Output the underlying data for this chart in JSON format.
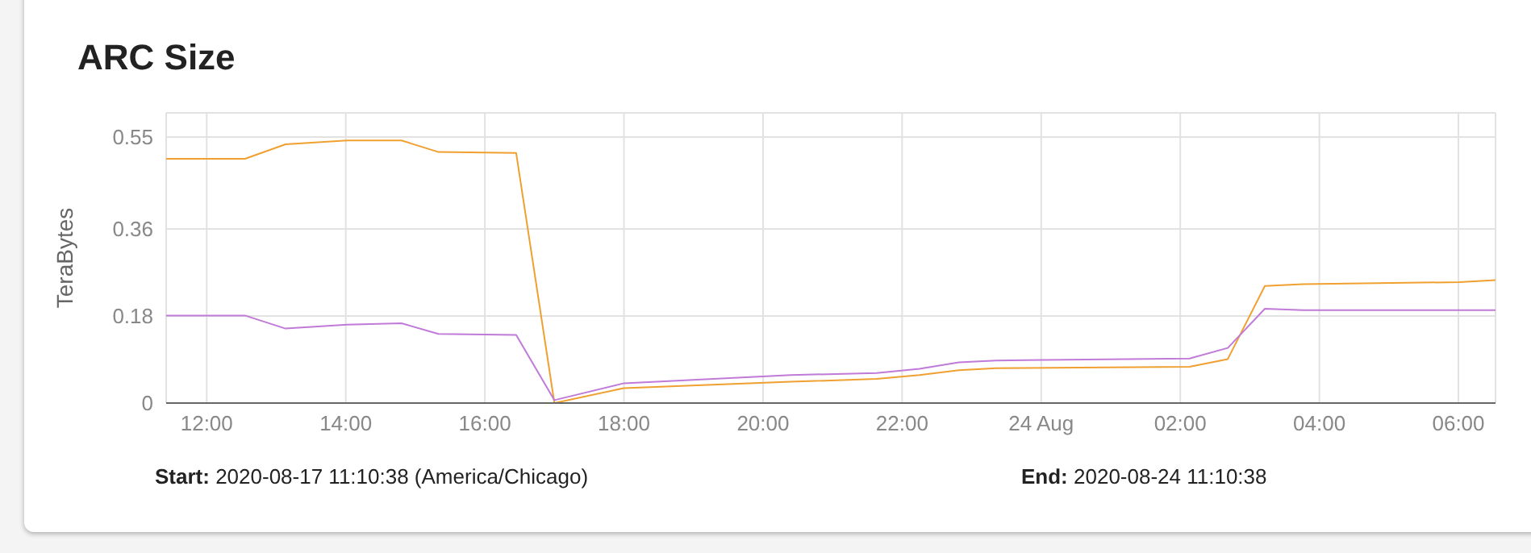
{
  "chart_data": {
    "type": "line",
    "title": "ARC Size",
    "ylabel": "TeraBytes",
    "x": [
      "2020-08-23T11:25",
      "2020-08-23T12:33",
      "2020-08-23T13:08",
      "2020-08-23T14:01",
      "2020-08-23T14:48",
      "2020-08-23T15:20",
      "2020-08-23T16:27",
      "2020-08-23T17:00",
      "2020-08-23T18:00",
      "2020-08-23T20:24",
      "2020-08-23T21:38",
      "2020-08-23T22:15",
      "2020-08-23T22:49",
      "2020-08-23T23:21",
      "2020-08-24T02:08",
      "2020-08-24T02:41",
      "2020-08-24T03:13",
      "2020-08-24T03:46",
      "2020-08-24T06:01",
      "2020-08-24T06:32"
    ],
    "series": [
      {
        "color": "#f0a030",
        "values": [
          0.505,
          0.505,
          0.535,
          0.543,
          0.543,
          0.519,
          0.517,
          0.0,
          0.031,
          0.044,
          0.05,
          0.058,
          0.068,
          0.072,
          0.075,
          0.091,
          0.242,
          0.246,
          0.25,
          0.254
        ]
      },
      {
        "color": "#c07ad8",
        "values": [
          0.181,
          0.181,
          0.154,
          0.162,
          0.165,
          0.143,
          0.141,
          0.006,
          0.041,
          0.058,
          0.062,
          0.071,
          0.084,
          0.088,
          0.092,
          0.114,
          0.195,
          0.192,
          0.192,
          0.192
        ]
      }
    ],
    "xlim": [
      "2020-08-23T11:25",
      "2020-08-24T06:32"
    ],
    "xticks": [
      {
        "value": "2020-08-23T12:00",
        "label": "12:00"
      },
      {
        "value": "2020-08-23T14:00",
        "label": "14:00"
      },
      {
        "value": "2020-08-23T16:00",
        "label": "16:00"
      },
      {
        "value": "2020-08-23T18:00",
        "label": "18:00"
      },
      {
        "value": "2020-08-23T20:00",
        "label": "20:00"
      },
      {
        "value": "2020-08-23T22:00",
        "label": "22:00"
      },
      {
        "value": "2020-08-24",
        "label": "24 Aug"
      },
      {
        "value": "2020-08-24T02:00",
        "label": "02:00"
      },
      {
        "value": "2020-08-24T04:00",
        "label": "04:00"
      },
      {
        "value": "2020-08-24T06:00",
        "label": "06:00"
      }
    ],
    "ylim": [
      0,
      0.6
    ],
    "yticks": [
      0,
      0.18,
      0.36,
      0.55
    ],
    "grid": true,
    "legend": false,
    "marker": "none",
    "line_style": "solid",
    "annotations": [
      "Start: 2020-08-17 11:10:38 (America/Chicago)",
      "End: 2020-08-24 11:10:38"
    ]
  }
}
